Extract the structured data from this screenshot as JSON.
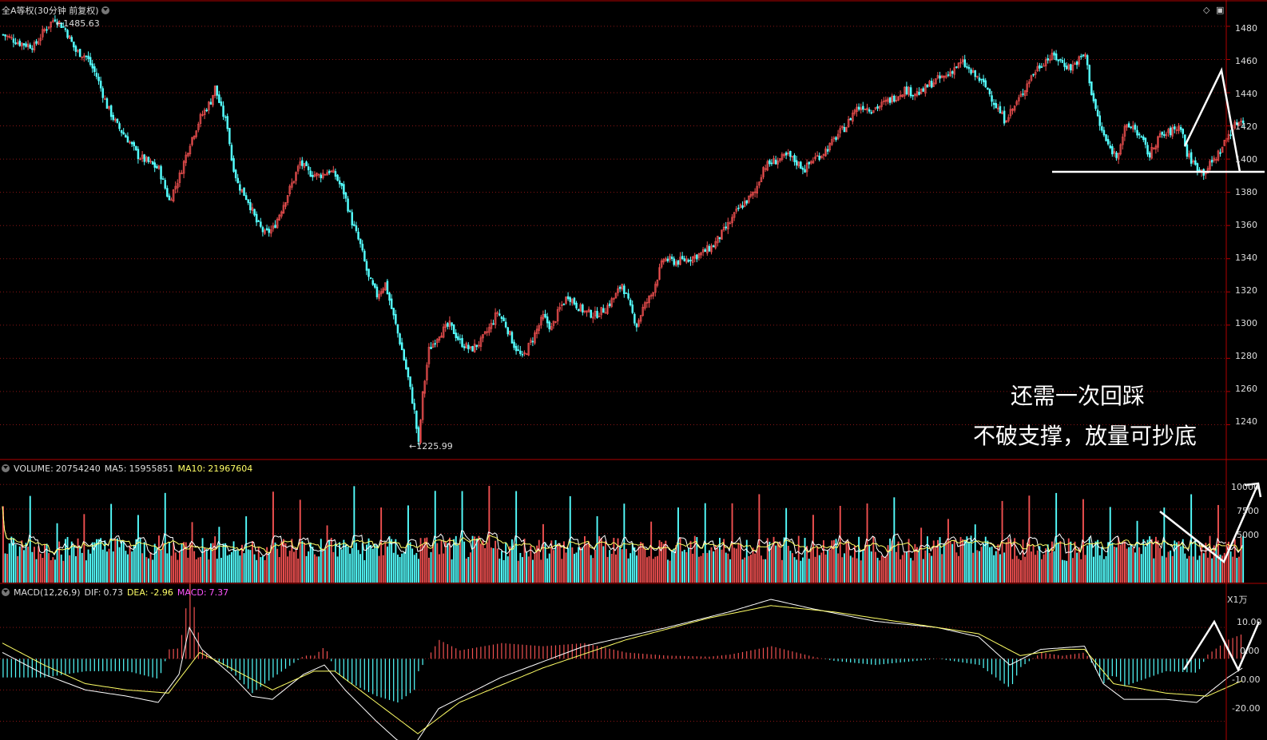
{
  "title": "全A等权(30分钟 前复权)",
  "price_panel": {
    "high_label": "1485.63",
    "low_label": "1225.99",
    "ticks": [
      "1480",
      "1460",
      "1440",
      "1420",
      "1400",
      "1380",
      "1360",
      "1340",
      "1320",
      "1300",
      "1280",
      "1260",
      "1240"
    ]
  },
  "volume_panel": {
    "label": "VOLUME:",
    "value": "20754240",
    "ma5_label": "MA5:",
    "ma5": "15955851",
    "ma10_label": "MA10:",
    "ma10": "21967604",
    "ticks": [
      "10000",
      "7500",
      "5000"
    ],
    "unit": "X1万"
  },
  "macd_panel": {
    "label": "MACD(12,26,9)",
    "dif_label": "DIF:",
    "dif": "0.73",
    "dea_label": "DEA:",
    "dea": "-2.96",
    "macd_label": "MACD:",
    "macd": "7.37",
    "ticks": [
      "10.00",
      "0.00",
      "-10.00",
      "-20.00"
    ]
  },
  "annotations": {
    "line1": "还需一次回踩",
    "line2": "不破支撑，放量可抄底"
  },
  "colors": {
    "up": "#f05050",
    "down": "#54ffff",
    "ma5": "#ffffff",
    "ma10": "#ffff66",
    "grid": "#8a1515",
    "axis": "#b00000",
    "macd_text": "#ff55ff"
  },
  "chart_data": {
    "type": "candlestick",
    "price_range": [
      1220,
      1492
    ],
    "high": 1485.63,
    "low": 1225.99,
    "support_level": 1391,
    "close_path": [
      [
        0,
        1475
      ],
      [
        8,
        1470
      ],
      [
        15,
        1468
      ],
      [
        20,
        1478
      ],
      [
        25,
        1485
      ],
      [
        30,
        1478
      ],
      [
        35,
        1465
      ],
      [
        40,
        1462
      ],
      [
        45,
        1450
      ],
      [
        50,
        1432
      ],
      [
        55,
        1420
      ],
      [
        60,
        1412
      ],
      [
        65,
        1402
      ],
      [
        70,
        1398
      ],
      [
        75,
        1394
      ],
      [
        80,
        1375
      ],
      [
        85,
        1390
      ],
      [
        90,
        1410
      ],
      [
        95,
        1425
      ],
      [
        100,
        1435
      ],
      [
        102,
        1443
      ],
      [
        105,
        1430
      ],
      [
        108,
        1420
      ],
      [
        110,
        1400
      ],
      [
        113,
        1385
      ],
      [
        118,
        1375
      ],
      [
        122,
        1362
      ],
      [
        126,
        1355
      ],
      [
        130,
        1358
      ],
      [
        135,
        1373
      ],
      [
        140,
        1388
      ],
      [
        143,
        1398
      ],
      [
        147,
        1392
      ],
      [
        152,
        1390
      ],
      [
        157,
        1393
      ],
      [
        160,
        1390
      ],
      [
        164,
        1380
      ],
      [
        168,
        1362
      ],
      [
        172,
        1348
      ],
      [
        176,
        1328
      ],
      [
        180,
        1318
      ],
      [
        184,
        1325
      ],
      [
        188,
        1305
      ],
      [
        192,
        1285
      ],
      [
        195,
        1268
      ],
      [
        198,
        1248
      ],
      [
        200,
        1228
      ],
      [
        202,
        1258
      ],
      [
        205,
        1285
      ],
      [
        210,
        1295
      ],
      [
        215,
        1300
      ],
      [
        220,
        1290
      ],
      [
        225,
        1285
      ],
      [
        230,
        1290
      ],
      [
        235,
        1300
      ],
      [
        238,
        1308
      ],
      [
        242,
        1300
      ],
      [
        246,
        1288
      ],
      [
        250,
        1280
      ],
      [
        255,
        1292
      ],
      [
        260,
        1305
      ],
      [
        264,
        1298
      ],
      [
        268,
        1310
      ],
      [
        272,
        1318
      ],
      [
        276,
        1312
      ],
      [
        280,
        1308
      ],
      [
        285,
        1306
      ],
      [
        290,
        1310
      ],
      [
        295,
        1318
      ],
      [
        298,
        1325
      ],
      [
        302,
        1310
      ],
      [
        305,
        1300
      ],
      [
        308,
        1310
      ],
      [
        312,
        1318
      ],
      [
        318,
        1340
      ],
      [
        324,
        1338
      ],
      [
        330,
        1340
      ],
      [
        336,
        1343
      ],
      [
        342,
        1348
      ],
      [
        346,
        1355
      ],
      [
        350,
        1362
      ],
      [
        354,
        1370
      ],
      [
        358,
        1375
      ],
      [
        362,
        1380
      ],
      [
        366,
        1395
      ],
      [
        370,
        1398
      ],
      [
        374,
        1400
      ],
      [
        378,
        1402
      ],
      [
        382,
        1398
      ],
      [
        386,
        1394
      ],
      [
        390,
        1400
      ],
      [
        394,
        1403
      ],
      [
        398,
        1408
      ],
      [
        402,
        1415
      ],
      [
        406,
        1420
      ],
      [
        410,
        1430
      ],
      [
        414,
        1432
      ],
      [
        418,
        1430
      ],
      [
        422,
        1432
      ],
      [
        426,
        1435
      ],
      [
        430,
        1438
      ],
      [
        434,
        1442
      ],
      [
        438,
        1440
      ],
      [
        442,
        1440
      ],
      [
        446,
        1445
      ],
      [
        450,
        1448
      ],
      [
        454,
        1450
      ],
      [
        458,
        1455
      ],
      [
        462,
        1458
      ],
      [
        466,
        1452
      ],
      [
        470,
        1448
      ],
      [
        474,
        1442
      ],
      [
        478,
        1432
      ],
      [
        482,
        1424
      ],
      [
        486,
        1430
      ],
      [
        490,
        1438
      ],
      [
        494,
        1448
      ],
      [
        498,
        1455
      ],
      [
        502,
        1460
      ],
      [
        506,
        1462
      ],
      [
        510,
        1458
      ],
      [
        514,
        1455
      ],
      [
        518,
        1460
      ],
      [
        521,
        1463
      ],
      [
        524,
        1440
      ],
      [
        528,
        1420
      ],
      [
        532,
        1408
      ],
      [
        536,
        1402
      ],
      [
        540,
        1418
      ],
      [
        544,
        1420
      ],
      [
        548,
        1412
      ],
      [
        552,
        1402
      ],
      [
        556,
        1413
      ],
      [
        560,
        1415
      ],
      [
        564,
        1418
      ],
      [
        567,
        1420
      ],
      [
        570,
        1403
      ],
      [
        574,
        1396
      ],
      [
        578,
        1392
      ],
      [
        582,
        1398
      ],
      [
        586,
        1405
      ],
      [
        590,
        1415
      ],
      [
        594,
        1422
      ],
      [
        597,
        1424
      ]
    ],
    "volume_range": [
      0,
      11000
    ],
    "macd_range": [
      -25,
      19
    ],
    "dif_path": [
      [
        0,
        2
      ],
      [
        20,
        -5
      ],
      [
        40,
        -10
      ],
      [
        60,
        -12
      ],
      [
        75,
        -14
      ],
      [
        85,
        -5
      ],
      [
        90,
        10
      ],
      [
        96,
        3
      ],
      [
        110,
        -5
      ],
      [
        120,
        -12
      ],
      [
        130,
        -13
      ],
      [
        145,
        -5
      ],
      [
        155,
        -2
      ],
      [
        165,
        -10
      ],
      [
        180,
        -20
      ],
      [
        190,
        -26
      ],
      [
        198,
        -28
      ],
      [
        210,
        -16
      ],
      [
        240,
        -6
      ],
      [
        280,
        4
      ],
      [
        320,
        10
      ],
      [
        350,
        15
      ],
      [
        370,
        19
      ],
      [
        390,
        16
      ],
      [
        420,
        12
      ],
      [
        450,
        10
      ],
      [
        470,
        7
      ],
      [
        485,
        -2
      ],
      [
        500,
        3
      ],
      [
        521,
        4
      ],
      [
        530,
        -8
      ],
      [
        540,
        -13
      ],
      [
        560,
        -13
      ],
      [
        575,
        -14
      ],
      [
        590,
        -6
      ],
      [
        597,
        -3
      ]
    ],
    "dea_path": [
      [
        0,
        5
      ],
      [
        20,
        -2
      ],
      [
        40,
        -8
      ],
      [
        60,
        -10
      ],
      [
        80,
        -11
      ],
      [
        95,
        2
      ],
      [
        110,
        -3
      ],
      [
        130,
        -10
      ],
      [
        150,
        -4
      ],
      [
        160,
        -4
      ],
      [
        180,
        -14
      ],
      [
        200,
        -24
      ],
      [
        220,
        -14
      ],
      [
        260,
        -3
      ],
      [
        300,
        6
      ],
      [
        340,
        13
      ],
      [
        370,
        17
      ],
      [
        400,
        15
      ],
      [
        440,
        11
      ],
      [
        470,
        8
      ],
      [
        490,
        1
      ],
      [
        510,
        3
      ],
      [
        521,
        3
      ],
      [
        535,
        -8
      ],
      [
        560,
        -11
      ],
      [
        580,
        -12
      ],
      [
        597,
        -7
      ]
    ]
  }
}
